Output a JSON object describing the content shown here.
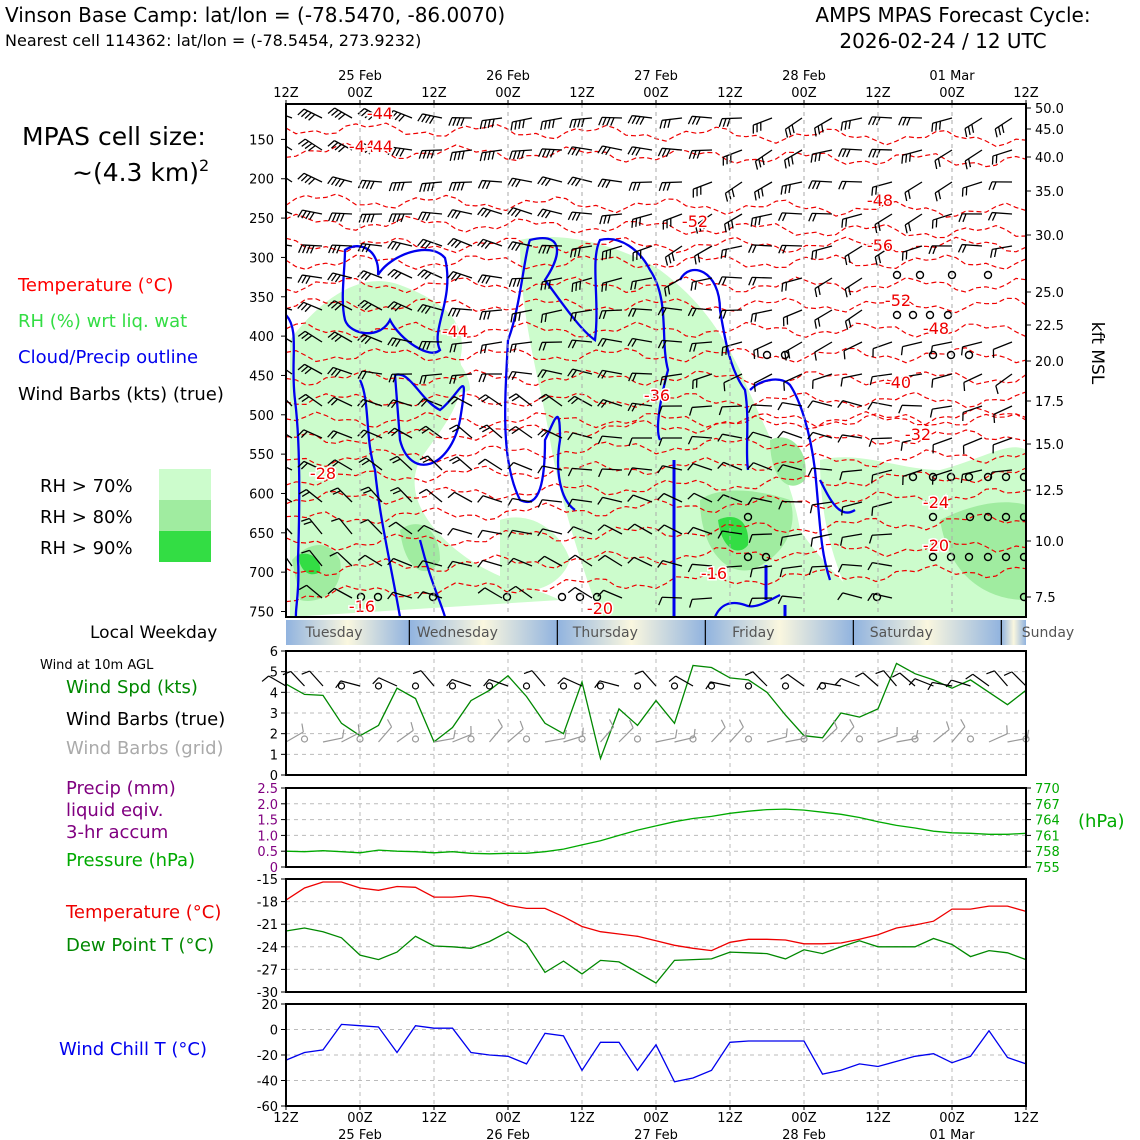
{
  "header": {
    "title_left": "Vinson Base Camp: lat/lon = (-78.5470, -86.0070)",
    "subtitle_left": "Nearest cell 114362: lat/lon = (-78.5454, 273.9232)",
    "title_right_1": "AMPS MPAS Forecast Cycle:",
    "title_right_2": "2026-02-24 / 12 UTC"
  },
  "legend": {
    "cell_size_1": "MPAS cell size:",
    "cell_size_2": "~(4.3 km)",
    "cell_size_sup": "2",
    "temperature": "Temperature (°C)",
    "rh": "RH (%) wrt liq. wat",
    "cloud": "Cloud/Precip outline",
    "wind": "Wind Barbs (kts) (true)",
    "rh70": "RH > 70%",
    "rh80": "RH > 80%",
    "rh90": "RH > 90%",
    "colors": {
      "rh70": "#ccfccc",
      "rh80": "#a0eca0",
      "rh90": "#33dd44",
      "temp": "#ff0000",
      "cloud": "#0000ee"
    }
  },
  "time_axis": {
    "tick_labels": [
      "12Z",
      "00Z",
      "12Z",
      "00Z",
      "12Z",
      "00Z",
      "12Z",
      "00Z",
      "12Z",
      "00Z",
      "12Z"
    ],
    "date_labels": [
      "25 Feb",
      "26 Feb",
      "27 Feb",
      "28 Feb",
      "01 Mar"
    ],
    "date_tick_index": [
      1,
      3,
      5,
      7,
      9
    ]
  },
  "weekday": {
    "label": "Local Weekday",
    "days": [
      "Tuesday",
      "Wednesday",
      "Thursday",
      "Friday",
      "Saturday",
      "Sunday"
    ]
  },
  "surface_legend": {
    "heading": "Wind at 10m AGL",
    "wind_speed": "Wind Spd (kts)",
    "wind_barbs_true": "Wind Barbs (true)",
    "wind_barbs_grid": "Wind Barbs (grid)",
    "precip_1": "Precip (mm)",
    "precip_2": "liquid eqiv.",
    "precip_3": "3-hr accum",
    "pressure": "Pressure (hPa)",
    "pressure_unit": "(hPa)",
    "temperature": "Temperature (°C)",
    "dewpoint": "Dew Point T (°C)",
    "windchill": "Wind Chill T (°C)"
  },
  "chart_data": [
    {
      "type": "contour",
      "name": "cross-section",
      "x": "forecast time, 12Z 24 Feb to 12Z 01 Mar 2026",
      "y_left_pressure_hpa": [
        150,
        200,
        250,
        300,
        350,
        400,
        450,
        500,
        550,
        600,
        650,
        700,
        750
      ],
      "y_right_kft_msl": [
        50.0,
        45.0,
        40.0,
        35.0,
        30.0,
        25.0,
        22.5,
        20.0,
        17.5,
        15.0,
        12.5,
        10.0,
        7.5
      ],
      "y_right_label": "kft MSL",
      "temperature_contour_labels": [
        "-44",
        "-44",
        "-44",
        "-52",
        "-48",
        "-56",
        "-52",
        "-48",
        "-40",
        "-36",
        "-32",
        "-28",
        "-24",
        "-20",
        "-16",
        "-16",
        "-20"
      ]
    },
    {
      "type": "line",
      "name": "wind-speed",
      "ylim": [
        0,
        6
      ],
      "yticks": [
        "0",
        "1",
        "2",
        "3",
        "4",
        "5",
        "6"
      ],
      "x_hours": [
        0,
        3,
        6,
        9,
        12,
        15,
        18,
        21,
        24,
        27,
        30,
        33,
        36,
        39,
        42,
        45,
        48,
        51,
        54,
        57,
        60,
        63,
        66,
        69,
        72,
        75,
        78,
        81,
        84,
        87,
        90,
        93,
        96,
        99,
        102,
        105,
        108,
        111,
        114,
        117,
        120
      ],
      "values": [
        4.4,
        3.9,
        3.85,
        2.5,
        1.9,
        2.4,
        4.2,
        3.7,
        1.6,
        2.3,
        3.6,
        4.1,
        4.8,
        3.8,
        2.5,
        2.0,
        4.5,
        0.8,
        3.2,
        2.4,
        3.6,
        2.5,
        5.3,
        5.2,
        4.7,
        4.6,
        4.0,
        2.9,
        1.9,
        1.8,
        3.0,
        2.8,
        3.2,
        5.4,
        4.9,
        4.6,
        4.2,
        4.6,
        4.0,
        3.4,
        4.1
      ]
    },
    {
      "type": "line",
      "name": "pressure",
      "yticks_left_precip": [
        "0",
        "0.5",
        "1.0",
        "1.5",
        "2.0",
        "2.5"
      ],
      "yticks_right_hpa": [
        "755",
        "758",
        "761",
        "764",
        "767",
        "770"
      ],
      "ylim_hpa": [
        755,
        770
      ],
      "values": [
        758.0,
        757.9,
        758.1,
        757.9,
        757.7,
        758.2,
        758.0,
        757.9,
        757.7,
        757.9,
        757.6,
        757.5,
        757.6,
        757.6,
        757.9,
        758.4,
        759.2,
        760.0,
        761.0,
        762.0,
        762.8,
        763.6,
        764.2,
        764.6,
        765.2,
        765.6,
        765.9,
        766.0,
        765.8,
        765.4,
        765.0,
        764.4,
        763.6,
        762.9,
        762.4,
        761.8,
        761.5,
        761.4,
        761.2,
        761.2,
        761.4
      ]
    },
    {
      "type": "line",
      "name": "temperature-dewpoint",
      "ylim": [
        -30,
        -15
      ],
      "yticks": [
        "-15",
        "-18",
        "-21",
        "-24",
        "-27",
        "-30"
      ],
      "series": [
        {
          "name": "Temperature (°C)",
          "color": "#ee0000",
          "values": [
            -17.8,
            -16.2,
            -15.4,
            -15.4,
            -16.2,
            -16.5,
            -16.0,
            -16.1,
            -17.4,
            -17.4,
            -17.2,
            -17.5,
            -18.5,
            -18.9,
            -18.9,
            -20.0,
            -21.3,
            -22.0,
            -22.3,
            -22.6,
            -23.2,
            -23.8,
            -24.2,
            -24.5,
            -23.4,
            -23.0,
            -23.0,
            -23.1,
            -23.6,
            -23.6,
            -23.5,
            -23.0,
            -22.4,
            -21.5,
            -21.1,
            -20.6,
            -19.0,
            -19.0,
            -18.6,
            -18.6,
            -19.3
          ]
        },
        {
          "name": "Dew Point T (°C)",
          "color": "#008800",
          "values": [
            -21.9,
            -21.5,
            -22.0,
            -22.8,
            -25.1,
            -25.7,
            -24.7,
            -22.6,
            -23.9,
            -24.0,
            -24.2,
            -23.3,
            -22.0,
            -23.6,
            -27.4,
            -25.9,
            -27.6,
            -25.8,
            -26.0,
            -27.4,
            -28.8,
            -25.8,
            -25.7,
            -25.6,
            -24.7,
            -24.8,
            -24.9,
            -25.6,
            -24.4,
            -24.9,
            -24.0,
            -23.2,
            -24.0,
            -24.0,
            -24.0,
            -22.9,
            -23.7,
            -25.3,
            -24.5,
            -24.8,
            -25.7
          ]
        }
      ]
    },
    {
      "type": "line",
      "name": "wind-chill",
      "ylim": [
        -60,
        20
      ],
      "yticks": [
        "20",
        "0",
        "-20",
        "-40",
        "-60"
      ],
      "values": [
        -24,
        -18,
        -16,
        4,
        3,
        2,
        -18,
        3,
        1,
        1,
        -18,
        -20,
        -21,
        -27,
        -3,
        -5,
        -32,
        -10,
        -10,
        -32,
        -12,
        -41,
        -38,
        -32,
        -10,
        -9,
        -9,
        -9,
        -9,
        -35,
        -32,
        -27,
        -29,
        -25,
        -21,
        -19,
        -26,
        -21,
        -1,
        -22,
        -27
      ]
    }
  ]
}
